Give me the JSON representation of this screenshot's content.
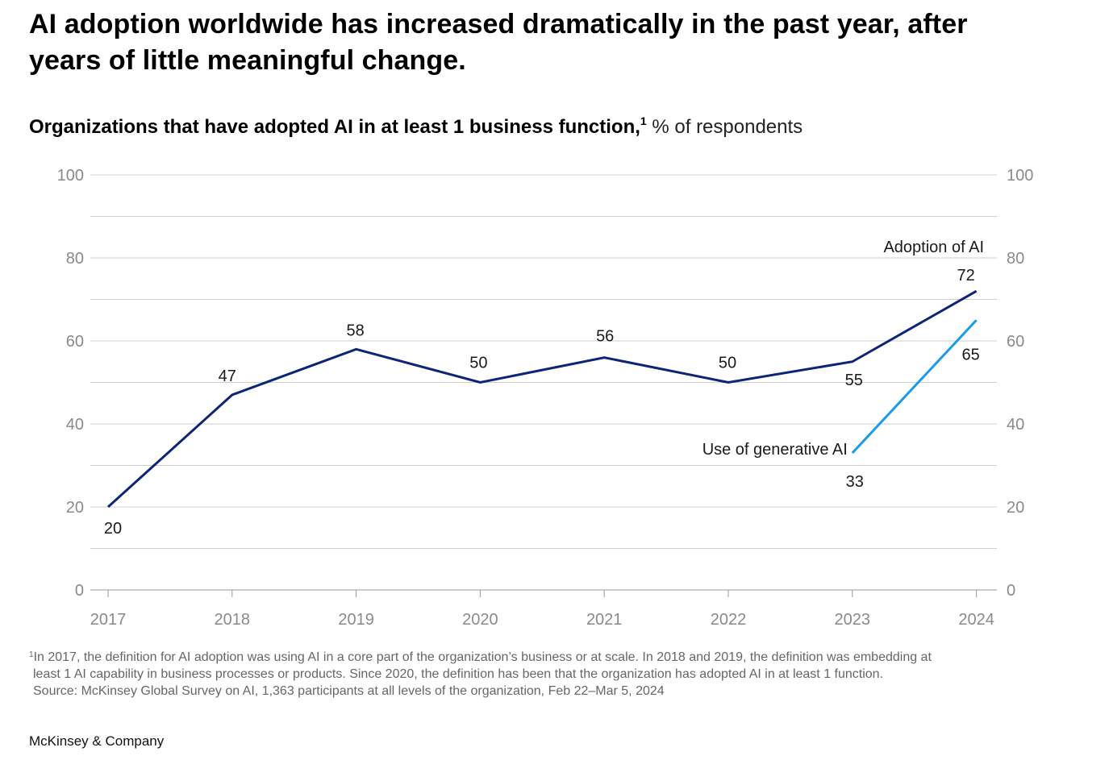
{
  "headline": "AI adoption worldwide has increased dramatically in the past year, after years of little meaningful change.",
  "subtitle": {
    "bold_text": "Organizations that have adopted AI in at least 1 business function,",
    "footnote_marker": "1",
    "unit_text": "% of respondents"
  },
  "chart_data": {
    "type": "line",
    "x": [
      "2017",
      "2018",
      "2019",
      "2020",
      "2021",
      "2022",
      "2023",
      "2024"
    ],
    "ylim": [
      0,
      100
    ],
    "yticks": [
      0,
      20,
      40,
      60,
      80,
      100
    ],
    "grid": true,
    "gridline_step": 10,
    "axes": "y tick labels on both left and right",
    "series": [
      {
        "name": "Adoption of AI",
        "color": "#0c2577",
        "x": [
          "2017",
          "2018",
          "2019",
          "2020",
          "2021",
          "2022",
          "2023",
          "2024"
        ],
        "values": [
          20,
          47,
          58,
          50,
          56,
          50,
          55,
          72
        ]
      },
      {
        "name": "Use of generative AI",
        "color": "#1a9bea",
        "x": [
          "2023",
          "2024"
        ],
        "values": [
          33,
          65
        ]
      }
    ]
  },
  "footnotes": {
    "marker": "1",
    "line1": "In 2017, the definition for AI adoption was using AI in a core part of the organization’s business or at scale. In 2018 and 2019, the definition was embedding at",
    "line2": "least 1 AI capability in business processes or products. Since 2020, the definition has been that the organization has adopted AI in at least 1 function.",
    "source": "Source: McKinsey Global Survey on AI, 1,363 participants at all levels of the organization, Feb 22–Mar 5, 2024"
  },
  "brand": "McKinsey & Company"
}
